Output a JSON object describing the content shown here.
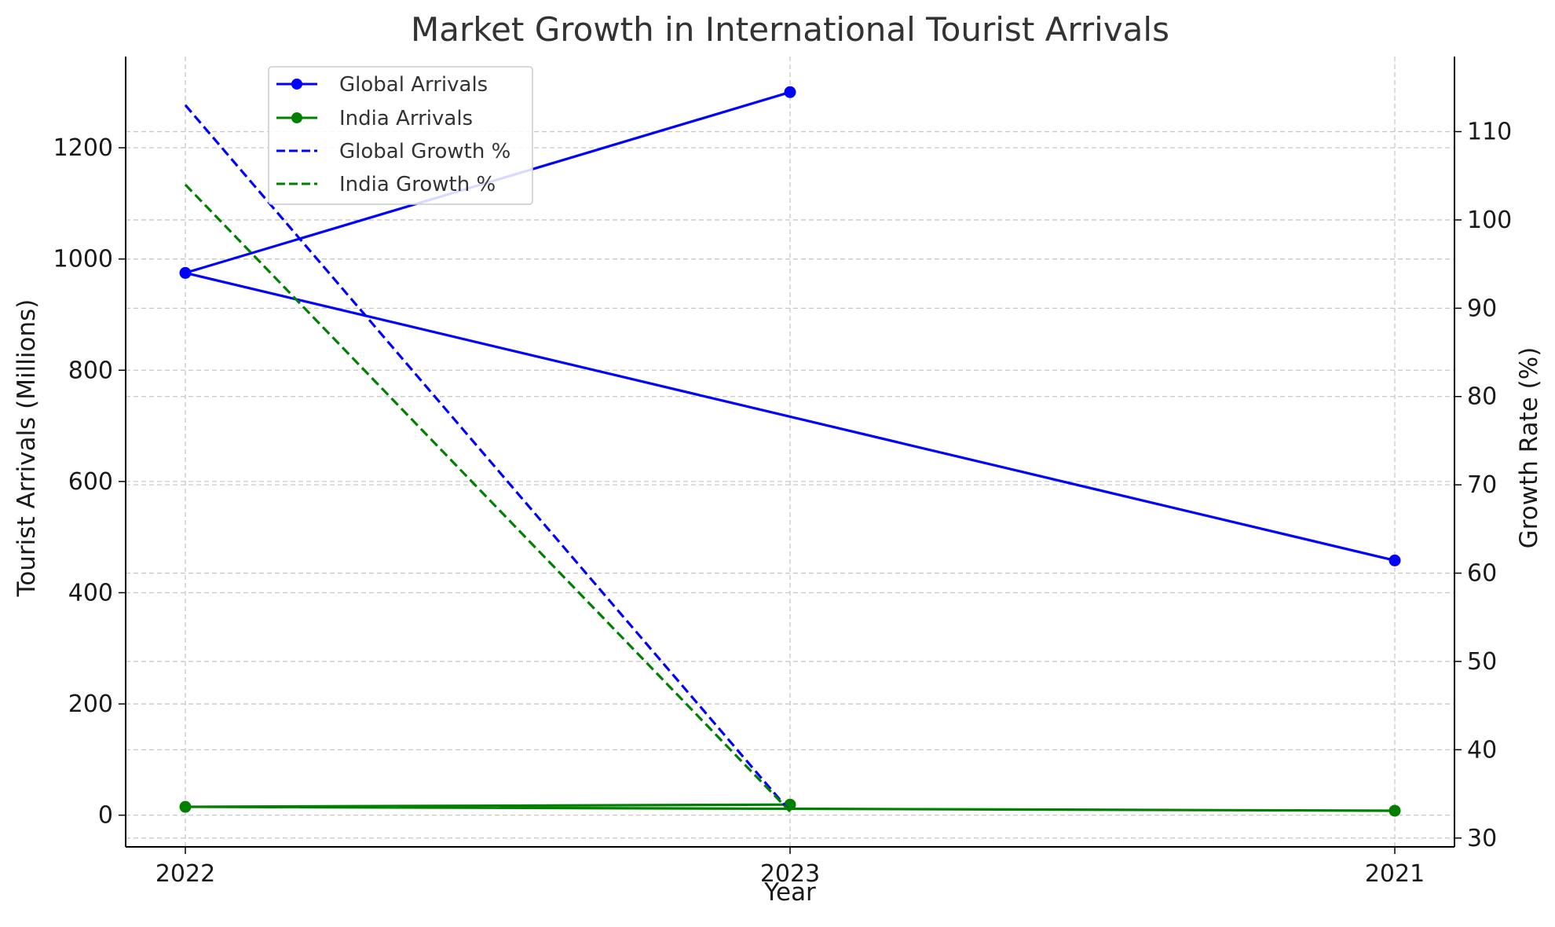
{
  "chart_data": {
    "type": "line",
    "title": "Market Growth in International Tourist Arrivals",
    "xlabel": "Year",
    "ylabel": "Tourist Arrivals (Millions)",
    "y2label": "Growth Rate (%)",
    "categories": [
      "2022",
      "2023",
      "2021"
    ],
    "data_order": [
      "2023",
      "2022",
      "2021"
    ],
    "ylim": [
      -57,
      1364
    ],
    "y2lim": [
      29,
      118.5
    ],
    "yticks": [
      0,
      200,
      400,
      600,
      800,
      1000,
      1200
    ],
    "y2ticks": [
      30,
      40,
      50,
      60,
      70,
      80,
      90,
      100,
      110
    ],
    "grid": true,
    "legend_position": "top-left",
    "series": [
      {
        "name": "Global Arrivals",
        "axis": "left",
        "style": "solid",
        "marker": "circle",
        "color": "#0000ff",
        "points": [
          {
            "x": "2023",
            "y": 1300
          },
          {
            "x": "2022",
            "y": 975
          },
          {
            "x": "2021",
            "y": 458
          }
        ]
      },
      {
        "name": "India Arrivals",
        "axis": "left",
        "style": "solid",
        "marker": "circle",
        "color": "#008000",
        "points": [
          {
            "x": "2023",
            "y": 19
          },
          {
            "x": "2022",
            "y": 15
          },
          {
            "x": "2021",
            "y": 8
          }
        ]
      },
      {
        "name": "Global Growth %",
        "axis": "right",
        "style": "dashed",
        "marker": "none",
        "color": "#0000ff",
        "points": [
          {
            "x": "2022",
            "y": 113
          },
          {
            "x": "2023",
            "y": 33
          }
        ]
      },
      {
        "name": "India Growth %",
        "axis": "right",
        "style": "dashed",
        "marker": "none",
        "color": "#008000",
        "points": [
          {
            "x": "2022",
            "y": 104
          },
          {
            "x": "2023",
            "y": 33
          }
        ]
      }
    ]
  }
}
